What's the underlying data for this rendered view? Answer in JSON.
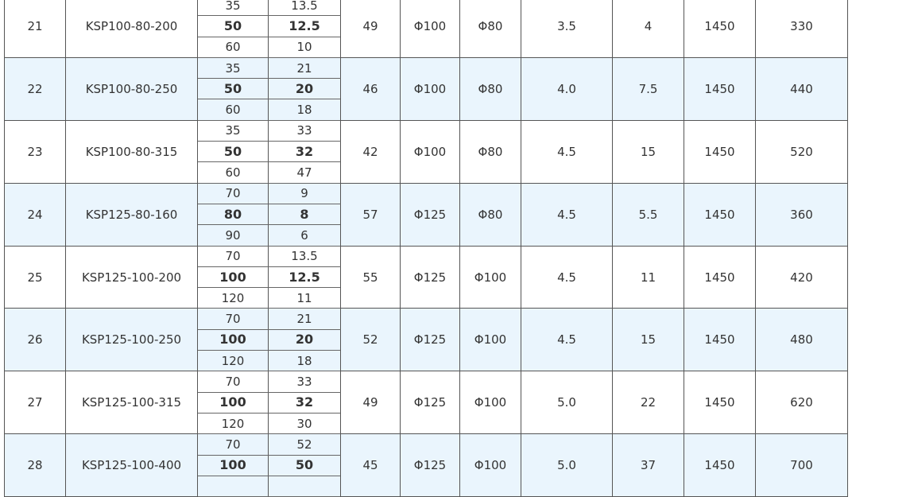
{
  "colors": {
    "alt_row_bg": "#eaf5fd",
    "border": "#555555"
  },
  "rows": [
    {
      "no": "21",
      "model": "KSP100-80-200",
      "flow": [
        "35",
        "50",
        "60"
      ],
      "head": [
        "13.5",
        "12.5",
        "10"
      ],
      "eff": "49",
      "inlet": "Φ100",
      "outlet": "Φ80",
      "npsh": "3.5",
      "power": "4",
      "speed": "1450",
      "weight": "330"
    },
    {
      "no": "22",
      "model": "KSP100-80-250",
      "flow": [
        "35",
        "50",
        "60"
      ],
      "head": [
        "21",
        "20",
        "18"
      ],
      "eff": "46",
      "inlet": "Φ100",
      "outlet": "Φ80",
      "npsh": "4.0",
      "power": "7.5",
      "speed": "1450",
      "weight": "440"
    },
    {
      "no": "23",
      "model": "KSP100-80-315",
      "flow": [
        "35",
        "50",
        "60"
      ],
      "head": [
        "33",
        "32",
        "47"
      ],
      "eff": "42",
      "inlet": "Φ100",
      "outlet": "Φ80",
      "npsh": "4.5",
      "power": "15",
      "speed": "1450",
      "weight": "520"
    },
    {
      "no": "24",
      "model": "KSP125-80-160",
      "flow": [
        "70",
        "80",
        "90"
      ],
      "head": [
        "9",
        "8",
        "6"
      ],
      "eff": "57",
      "inlet": "Φ125",
      "outlet": "Φ80",
      "npsh": "4.5",
      "power": "5.5",
      "speed": "1450",
      "weight": "360"
    },
    {
      "no": "25",
      "model": "KSP125-100-200",
      "flow": [
        "70",
        "100",
        "120"
      ],
      "head": [
        "13.5",
        "12.5",
        "11"
      ],
      "eff": "55",
      "inlet": "Φ125",
      "outlet": "Φ100",
      "npsh": "4.5",
      "power": "11",
      "speed": "1450",
      "weight": "420"
    },
    {
      "no": "26",
      "model": "KSP125-100-250",
      "flow": [
        "70",
        "100",
        "120"
      ],
      "head": [
        "21",
        "20",
        "18"
      ],
      "eff": "52",
      "inlet": "Φ125",
      "outlet": "Φ100",
      "npsh": "4.5",
      "power": "15",
      "speed": "1450",
      "weight": "480"
    },
    {
      "no": "27",
      "model": "KSP125-100-315",
      "flow": [
        "70",
        "100",
        "120"
      ],
      "head": [
        "33",
        "32",
        "30"
      ],
      "eff": "49",
      "inlet": "Φ125",
      "outlet": "Φ100",
      "npsh": "5.0",
      "power": "22",
      "speed": "1450",
      "weight": "620"
    },
    {
      "no": "28",
      "model": "KSP125-100-400",
      "flow": [
        "70",
        "100",
        ""
      ],
      "head": [
        "52",
        "50",
        ""
      ],
      "eff": "45",
      "inlet": "Φ125",
      "outlet": "Φ100",
      "npsh": "5.0",
      "power": "37",
      "speed": "1450",
      "weight": "700"
    }
  ]
}
